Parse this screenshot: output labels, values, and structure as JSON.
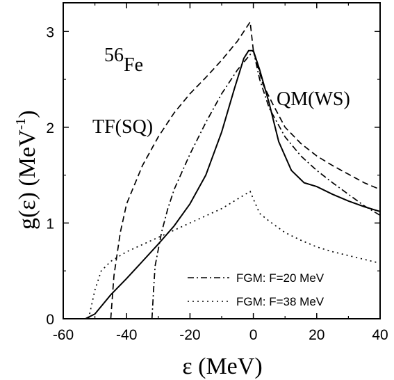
{
  "chart_data": {
    "type": "line",
    "title": "",
    "xlabel": "ε (MeV)",
    "ylabel_main": "g(ε) (MeV",
    "ylabel_sup": "-1",
    "ylabel_close": ")",
    "xlim": [
      -60,
      40
    ],
    "ylim": [
      0,
      3.3
    ],
    "xticks": [
      -60,
      -40,
      -20,
      0,
      20,
      40
    ],
    "yticks": [
      0,
      1,
      2,
      3
    ],
    "xtick_labels": [
      "-60",
      "-40",
      "-20",
      "0",
      "20",
      "40"
    ],
    "ytick_labels": [
      "0",
      "1",
      "2",
      "3"
    ],
    "grid": false,
    "legend_position": "bottom-right",
    "annotations": {
      "nucleus_sup": "56",
      "nucleus": "Fe",
      "tf_label": "TF(SQ)",
      "qm_label": "QM(WS)"
    },
    "series": [
      {
        "name": "",
        "dash": "solid",
        "points": [
          [
            -53,
            0
          ],
          [
            -50,
            0.05
          ],
          [
            -45,
            0.25
          ],
          [
            -40,
            0.42
          ],
          [
            -35,
            0.6
          ],
          [
            -30,
            0.78
          ],
          [
            -25,
            0.97
          ],
          [
            -20,
            1.2
          ],
          [
            -15,
            1.5
          ],
          [
            -10,
            1.95
          ],
          [
            -6,
            2.4
          ],
          [
            -3,
            2.72
          ],
          [
            -1.5,
            2.8
          ],
          [
            0,
            2.8
          ],
          [
            2,
            2.6
          ],
          [
            5,
            2.25
          ],
          [
            8,
            1.85
          ],
          [
            12,
            1.55
          ],
          [
            16,
            1.42
          ],
          [
            20,
            1.38
          ],
          [
            25,
            1.3
          ],
          [
            30,
            1.23
          ],
          [
            35,
            1.17
          ],
          [
            40,
            1.12
          ]
        ]
      },
      {
        "name": "",
        "dash": "dashed",
        "points": [
          [
            -45,
            0
          ],
          [
            -44,
            0.45
          ],
          [
            -42,
            0.9
          ],
          [
            -40,
            1.2
          ],
          [
            -35,
            1.6
          ],
          [
            -30,
            1.9
          ],
          [
            -25,
            2.15
          ],
          [
            -20,
            2.35
          ],
          [
            -15,
            2.52
          ],
          [
            -10,
            2.7
          ],
          [
            -5,
            2.9
          ],
          [
            -1,
            3.1
          ],
          [
            0,
            2.8
          ],
          [
            3,
            2.45
          ],
          [
            6,
            2.25
          ],
          [
            10,
            2.0
          ],
          [
            15,
            1.83
          ],
          [
            20,
            1.7
          ],
          [
            25,
            1.6
          ],
          [
            30,
            1.51
          ],
          [
            35,
            1.42
          ],
          [
            40,
            1.35
          ]
        ]
      },
      {
        "name": "FGM: F=20 MeV",
        "dash": "dashdot",
        "points": [
          [
            -32,
            0
          ],
          [
            -31.5,
            0.3
          ],
          [
            -31,
            0.55
          ],
          [
            -29,
            0.9
          ],
          [
            -27,
            1.15
          ],
          [
            -25,
            1.35
          ],
          [
            -20,
            1.72
          ],
          [
            -15,
            2.05
          ],
          [
            -10,
            2.35
          ],
          [
            -5,
            2.6
          ],
          [
            -2,
            2.72
          ],
          [
            0,
            2.8
          ],
          [
            2,
            2.5
          ],
          [
            5,
            2.2
          ],
          [
            10,
            1.9
          ],
          [
            15,
            1.7
          ],
          [
            20,
            1.55
          ],
          [
            25,
            1.42
          ],
          [
            30,
            1.3
          ],
          [
            35,
            1.18
          ],
          [
            40,
            1.08
          ]
        ]
      },
      {
        "name": "FGM: F=38 MeV",
        "dash": "dotted",
        "points": [
          [
            -52,
            0
          ],
          [
            -50,
            0.3
          ],
          [
            -48,
            0.5
          ],
          [
            -45,
            0.6
          ],
          [
            -40,
            0.7
          ],
          [
            -30,
            0.85
          ],
          [
            -20,
            1.0
          ],
          [
            -10,
            1.15
          ],
          [
            -5,
            1.25
          ],
          [
            -1,
            1.33
          ],
          [
            0,
            1.25
          ],
          [
            2,
            1.1
          ],
          [
            5,
            1.02
          ],
          [
            10,
            0.9
          ],
          [
            15,
            0.82
          ],
          [
            20,
            0.75
          ],
          [
            25,
            0.7
          ],
          [
            30,
            0.66
          ],
          [
            35,
            0.62
          ],
          [
            40,
            0.58
          ]
        ]
      }
    ]
  }
}
